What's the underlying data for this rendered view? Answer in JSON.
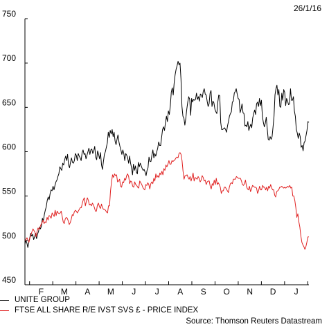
{
  "date_label": "26/1/16",
  "source": "Source: Thomson Reuters Datastream",
  "colors": {
    "unite": "#000000",
    "ftse": "#e02020"
  },
  "chart_data": {
    "type": "line",
    "title": "",
    "xlabel": "",
    "ylabel": "",
    "ylim": [
      450,
      750
    ],
    "yticks": [
      450,
      500,
      550,
      600,
      650,
      700,
      750
    ],
    "months": [
      "F",
      "M",
      "A",
      "M",
      "J",
      "J",
      "A",
      "S",
      "O",
      "N",
      "D",
      "J"
    ],
    "grid": false,
    "legend_position": "bottom-left",
    "series": [
      {
        "name": "UNITE GROUP",
        "color": "#000000",
        "values": [
          496,
          500,
          497,
          492,
          498,
          503,
          508,
          505,
          507,
          501,
          504,
          508,
          502,
          507,
          510,
          515,
          513,
          516,
          525,
          522,
          529,
          534,
          538,
          545,
          549,
          546,
          553,
          557,
          556,
          561,
          557,
          562,
          566,
          568,
          572,
          575,
          583,
          581,
          579,
          587,
          585,
          591,
          595,
          590,
          597,
          585,
          582,
          588,
          593,
          588,
          587,
          590,
          598,
          596,
          590,
          598,
          595,
          593,
          590,
          599,
          602,
          597,
          598,
          592,
          596,
          600,
          604,
          597,
          602,
          603,
          598,
          601,
          606,
          594,
          591,
          601,
          597,
          592,
          599,
          585,
          580,
          589,
          597,
          600,
          605,
          610,
          622,
          616,
          624,
          620,
          625,
          617,
          622,
          612,
          608,
          614,
          619,
          611,
          606,
          602,
          597,
          602,
          598,
          590,
          598,
          596,
          593,
          587,
          595,
          587,
          582,
          574,
          586,
          579,
          584,
          577,
          575,
          588,
          583,
          587,
          584,
          581,
          579,
          580,
          577,
          573,
          579,
          582,
          594,
          589,
          589,
          596,
          602,
          593,
          598,
          595,
          600,
          604,
          611,
          607,
          607,
          616,
          625,
          628,
          624,
          633,
          640,
          634,
          646,
          642,
          652,
          667,
          672,
          664,
          678,
          687,
          693,
          697,
          702,
          698,
          700,
          682,
          651,
          640,
          638,
          630,
          638,
          648,
          656,
          662,
          659,
          641,
          660,
          656,
          659,
          658,
          659,
          666,
          659,
          662,
          657,
          665,
          664,
          661,
          668,
          671,
          665,
          664,
          657,
          651,
          654,
          666,
          669,
          651,
          657,
          655,
          648,
          645,
          643,
          656,
          664,
          663,
          633,
          625,
          625,
          626,
          627,
          625,
          622,
          629,
          634,
          640,
          643,
          645,
          656,
          657,
          666,
          668,
          671,
          665,
          660,
          659,
          644,
          648,
          654,
          644,
          643,
          629,
          630,
          628,
          634,
          624,
          628,
          631,
          627,
          638,
          643,
          647,
          642,
          654,
          656,
          651,
          660,
          652,
          658,
          640,
          633,
          628,
          632,
          639,
          626,
          614,
          613,
          617,
          614,
          617,
          628,
          640,
          664,
          671,
          675,
          664,
          670,
          651,
          650,
          666,
          658,
          670,
          667,
          652,
          660,
          657,
          653,
          654,
          671,
          658,
          658,
          662,
          646,
          640,
          625,
          621,
          615,
          621,
          617,
          605,
          607,
          601,
          610,
          612,
          618,
          624,
          634,
          633
        ]
      },
      {
        "name": "FTSE ALL SHARE R/E IVST SVS £ - PRICE INDEX",
        "color": "#e02020",
        "values": [
          500,
          501,
          503,
          500,
          498,
          503,
          506,
          510,
          513,
          511,
          509,
          504,
          510,
          514,
          512,
          515,
          518,
          520,
          523,
          519,
          521,
          520,
          526,
          523,
          528,
          527,
          525,
          531,
          529,
          527,
          534,
          528,
          533,
          531,
          530,
          531,
          533,
          527,
          521,
          519,
          524,
          526,
          525,
          522,
          518,
          520,
          524,
          529,
          528,
          532,
          534,
          533,
          531,
          533,
          535,
          537,
          537,
          542,
          546,
          548,
          539,
          544,
          548,
          545,
          540,
          541,
          539,
          542,
          540,
          537,
          533,
          533,
          540,
          542,
          538,
          536,
          541,
          537,
          535,
          535,
          534,
          532,
          531,
          539,
          539,
          556,
          566,
          574,
          571,
          575,
          573,
          574,
          566,
          567,
          569,
          561,
          560,
          566,
          565,
          570,
          568,
          573,
          575,
          572,
          564,
          567,
          566,
          561,
          560,
          566,
          563,
          562,
          560,
          559,
          567,
          565,
          563,
          560,
          558,
          557,
          563,
          562,
          565,
          563,
          558,
          564,
          566,
          564,
          570,
          567,
          575,
          571,
          573,
          571,
          576,
          574,
          578,
          574,
          581,
          579,
          585,
          583,
          586,
          590,
          586,
          586,
          590,
          589,
          590,
          591,
          593,
          594,
          593,
          598,
          599,
          597,
          590,
          578,
          569,
          573,
          573,
          574,
          571,
          569,
          572,
          567,
          571,
          576,
          567,
          571,
          570,
          569,
          572,
          570,
          566,
          568,
          573,
          571,
          567,
          568,
          563,
          566,
          567,
          567,
          561,
          558,
          564,
          562,
          568,
          563,
          570,
          563,
          565,
          563,
          560,
          553,
          556,
          556,
          560,
          560,
          558,
          556,
          554,
          560,
          564,
          565,
          564,
          569,
          569,
          569,
          572,
          571,
          570,
          570,
          570,
          567,
          563,
          562,
          564,
          568,
          561,
          558,
          557,
          561,
          555,
          558,
          562,
          561,
          560,
          560,
          559,
          553,
          556,
          561,
          557,
          557,
          562,
          560,
          560,
          557,
          560,
          556,
          561,
          559,
          563,
          559,
          557,
          557,
          551,
          549,
          555,
          556,
          557,
          560,
          560,
          561,
          560,
          559,
          560,
          559,
          560,
          561,
          560,
          562,
          559,
          560,
          550,
          550,
          545,
          537,
          526,
          530,
          521,
          515,
          505,
          498,
          495,
          493,
          490,
          493,
          498,
          504,
          504
        ]
      }
    ]
  }
}
